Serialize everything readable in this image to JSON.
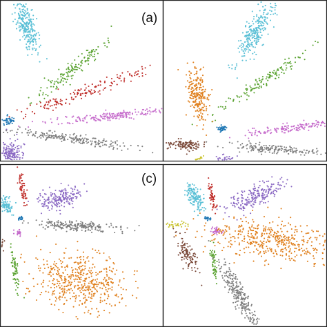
{
  "chart_data": [
    {
      "type": "scatter",
      "panel_label": "(a)",
      "clusters": [
        {
          "color": "#5bc0d6",
          "center": [
            0.16,
            0.16
          ],
          "spread_along": 0.085,
          "spread_across": 0.028,
          "angle_deg": 72,
          "count": 260
        },
        {
          "color": "#5ba332",
          "center": [
            0.44,
            0.43
          ],
          "spread_along": 0.16,
          "spread_across": 0.02,
          "angle_deg": -40,
          "count": 150
        },
        {
          "color": "#c0302c",
          "center": [
            0.52,
            0.57
          ],
          "spread_along": 0.26,
          "spread_across": 0.018,
          "angle_deg": -20,
          "count": 170
        },
        {
          "color": "#c66dcc",
          "center": [
            0.69,
            0.72
          ],
          "spread_along": 0.2,
          "spread_across": 0.014,
          "angle_deg": -6,
          "count": 200
        },
        {
          "color": "#7f7f7f",
          "center": [
            0.42,
            0.86
          ],
          "spread_along": 0.2,
          "spread_across": 0.014,
          "angle_deg": 8,
          "count": 220
        },
        {
          "color": "#1f77b4",
          "center": [
            0.05,
            0.75
          ],
          "spread_along": 0.018,
          "spread_across": 0.012,
          "angle_deg": 0,
          "count": 40
        },
        {
          "color": "#8c6bc4",
          "center": [
            0.07,
            0.97
          ],
          "spread_along": 0.045,
          "spread_across": 0.03,
          "angle_deg": 80,
          "count": 200
        }
      ]
    },
    {
      "type": "scatter",
      "panel_label": "",
      "clusters": [
        {
          "color": "#5bc0d6",
          "center": [
            0.56,
            0.2
          ],
          "spread_along": 0.1,
          "spread_across": 0.03,
          "angle_deg": -62,
          "count": 260
        },
        {
          "color": "#5ba332",
          "center": [
            0.6,
            0.51
          ],
          "spread_along": 0.15,
          "spread_across": 0.018,
          "angle_deg": -35,
          "count": 140
        },
        {
          "color": "#c66dcc",
          "center": [
            0.82,
            0.79
          ],
          "spread_along": 0.16,
          "spread_across": 0.014,
          "angle_deg": -8,
          "count": 160
        },
        {
          "color": "#7f7f7f",
          "center": [
            0.68,
            0.93
          ],
          "spread_along": 0.15,
          "spread_across": 0.014,
          "angle_deg": 4,
          "count": 180
        },
        {
          "color": "#e0801e",
          "center": [
            0.21,
            0.58
          ],
          "spread_along": 0.08,
          "spread_across": 0.03,
          "angle_deg": 85,
          "count": 230
        },
        {
          "color": "#1f77b4",
          "center": [
            0.36,
            0.8
          ],
          "spread_along": 0.016,
          "spread_across": 0.01,
          "angle_deg": 0,
          "count": 40
        },
        {
          "color": "#7b4a3a",
          "center": [
            0.13,
            0.9
          ],
          "spread_along": 0.05,
          "spread_across": 0.016,
          "angle_deg": 5,
          "count": 110
        },
        {
          "color": "#c9c22e",
          "center": [
            0.2,
            1.0
          ],
          "spread_along": 0.025,
          "spread_across": 0.007,
          "angle_deg": -30,
          "count": 35
        },
        {
          "color": "#8c6bc4",
          "center": [
            0.42,
            1.03
          ],
          "spread_along": 0.05,
          "spread_across": 0.022,
          "angle_deg": 25,
          "count": 150
        }
      ]
    },
    {
      "type": "scatter",
      "panel_label": "(c)",
      "clusters": [
        {
          "color": "#c0302c",
          "center": [
            0.13,
            0.13
          ],
          "spread_along": 0.05,
          "spread_across": 0.009,
          "angle_deg": 80,
          "count": 60
        },
        {
          "color": "#5bc0d6",
          "center": [
            0.03,
            0.25
          ],
          "spread_along": 0.03,
          "spread_across": 0.02,
          "angle_deg": 60,
          "count": 90
        },
        {
          "color": "#8c6bc4",
          "center": [
            0.37,
            0.2
          ],
          "spread_along": 0.07,
          "spread_across": 0.03,
          "angle_deg": -15,
          "count": 200
        },
        {
          "color": "#1f77b4",
          "center": [
            0.12,
            0.33
          ],
          "spread_along": 0.012,
          "spread_across": 0.007,
          "angle_deg": 0,
          "count": 20
        },
        {
          "color": "#7f7f7f",
          "center": [
            0.47,
            0.38
          ],
          "spread_along": 0.12,
          "spread_across": 0.014,
          "angle_deg": 3,
          "count": 220
        },
        {
          "color": "#c66dcc",
          "center": [
            0.11,
            0.42
          ],
          "spread_along": 0.012,
          "spread_across": 0.008,
          "angle_deg": 0,
          "count": 25
        },
        {
          "color": "#7b4a3a",
          "center": [
            0.0,
            0.48
          ],
          "spread_along": 0.02,
          "spread_across": 0.01,
          "angle_deg": 80,
          "count": 20
        },
        {
          "color": "#5ba332",
          "center": [
            0.09,
            0.65
          ],
          "spread_along": 0.07,
          "spread_across": 0.01,
          "angle_deg": 82,
          "count": 70
        },
        {
          "color": "#e0801e",
          "center": [
            0.49,
            0.72
          ],
          "spread_along": 0.14,
          "spread_across": 0.085,
          "angle_deg": 10,
          "count": 500
        }
      ]
    },
    {
      "type": "scatter",
      "panel_label": "",
      "clusters": [
        {
          "color": "#5bc0d6",
          "center": [
            0.19,
            0.2
          ],
          "spread_along": 0.045,
          "spread_across": 0.02,
          "angle_deg": 65,
          "count": 140
        },
        {
          "color": "#c0302c",
          "center": [
            0.3,
            0.2
          ],
          "spread_along": 0.05,
          "spread_across": 0.009,
          "angle_deg": 80,
          "count": 55
        },
        {
          "color": "#8c6bc4",
          "center": [
            0.55,
            0.2
          ],
          "spread_along": 0.1,
          "spread_across": 0.03,
          "angle_deg": -25,
          "count": 220
        },
        {
          "color": "#c9c22e",
          "center": [
            0.07,
            0.37
          ],
          "spread_along": 0.04,
          "spread_across": 0.008,
          "angle_deg": 0,
          "count": 30
        },
        {
          "color": "#1f77b4",
          "center": [
            0.27,
            0.33
          ],
          "spread_along": 0.012,
          "spread_across": 0.007,
          "angle_deg": 0,
          "count": 20
        },
        {
          "color": "#c66dcc",
          "center": [
            0.33,
            0.41
          ],
          "spread_along": 0.018,
          "spread_across": 0.01,
          "angle_deg": 0,
          "count": 35
        },
        {
          "color": "#e0801e",
          "center": [
            0.68,
            0.47
          ],
          "spread_along": 0.2,
          "spread_across": 0.06,
          "angle_deg": 8,
          "count": 460
        },
        {
          "color": "#7b4a3a",
          "center": [
            0.15,
            0.55
          ],
          "spread_along": 0.06,
          "spread_across": 0.02,
          "angle_deg": 65,
          "count": 110
        },
        {
          "color": "#5ba332",
          "center": [
            0.31,
            0.61
          ],
          "spread_along": 0.06,
          "spread_across": 0.009,
          "angle_deg": 82,
          "count": 60
        },
        {
          "color": "#7f7f7f",
          "center": [
            0.47,
            0.82
          ],
          "spread_along": 0.13,
          "spread_across": 0.022,
          "angle_deg": 62,
          "count": 270
        }
      ]
    }
  ]
}
